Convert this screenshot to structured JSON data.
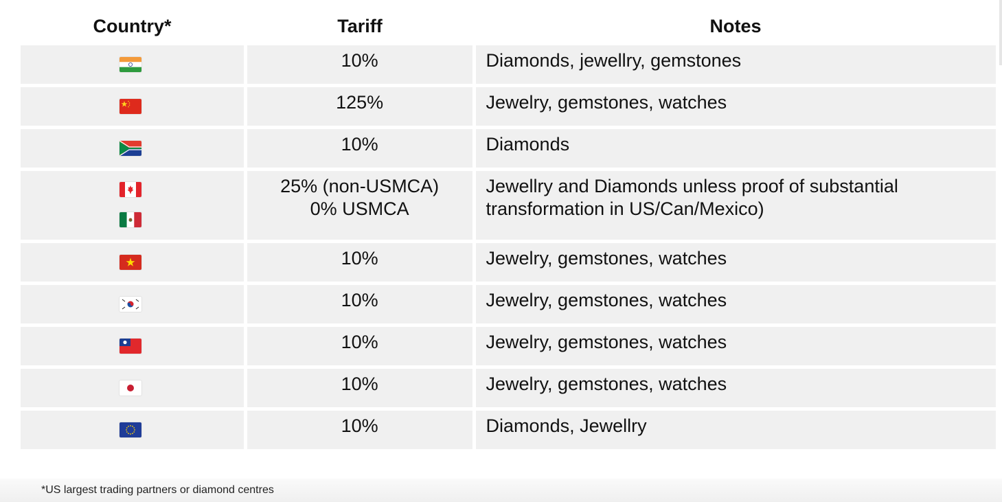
{
  "headers": {
    "country": "Country*",
    "tariff": "Tariff",
    "notes": "Notes"
  },
  "rows": [
    {
      "flags": [
        "india-flag-icon"
      ],
      "tariff": [
        "10%"
      ],
      "notes": "Diamonds, jewellry, gemstones"
    },
    {
      "flags": [
        "china-flag-icon"
      ],
      "tariff": [
        "125%"
      ],
      "notes": "Jewelry, gemstones, watches"
    },
    {
      "flags": [
        "south-africa-flag-icon"
      ],
      "tariff": [
        "10%"
      ],
      "notes": "Diamonds"
    },
    {
      "flags": [
        "canada-flag-icon",
        "mexico-flag-icon"
      ],
      "tariff": [
        "25% (non-USMCA)",
        "0% USMCA"
      ],
      "notes": "Jewellry and Diamonds unless proof of substantial transformation in US/Can/Mexico)"
    },
    {
      "flags": [
        "vietnam-flag-icon"
      ],
      "tariff": [
        "10%"
      ],
      "notes": "Jewelry, gemstones, watches"
    },
    {
      "flags": [
        "south-korea-flag-icon"
      ],
      "tariff": [
        "10%"
      ],
      "notes": "Jewelry, gemstones, watches"
    },
    {
      "flags": [
        "taiwan-flag-icon"
      ],
      "tariff": [
        "10%"
      ],
      "notes": "Jewelry, gemstones, watches"
    },
    {
      "flags": [
        "japan-flag-icon"
      ],
      "tariff": [
        "10%"
      ],
      "notes": "Jewelry, gemstones, watches"
    },
    {
      "flags": [
        "european-union-flag-icon"
      ],
      "tariff": [
        "10%"
      ],
      "notes": "Diamonds, Jewellry"
    }
  ],
  "footnote": "*US largest trading partners or diamond centres",
  "colors": {
    "row_background": "#f0f0f0",
    "text": "#111111"
  }
}
